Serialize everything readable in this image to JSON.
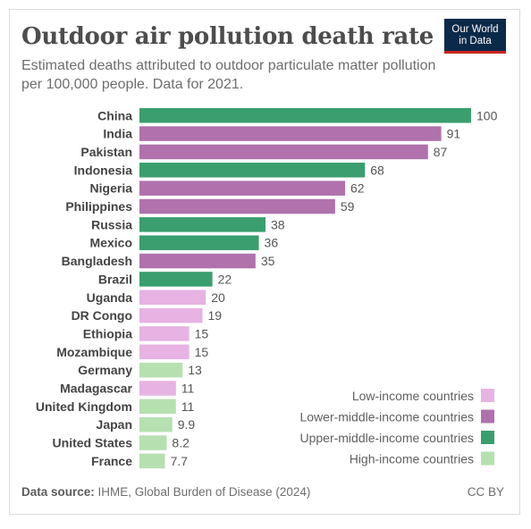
{
  "header": {
    "title": "Outdoor air pollution death rate",
    "subtitle": "Estimated deaths attributed to outdoor particulate matter pollution per 100,000 people. Data for 2021.",
    "logo_line1": "Our World",
    "logo_line2": "in Data"
  },
  "colors": {
    "low": "#e6b3e3",
    "lower_middle": "#b071ad",
    "upper_middle": "#3a9e6e",
    "high": "#b6e0b0"
  },
  "chart_data": {
    "type": "bar",
    "orientation": "horizontal",
    "categories": [
      "China",
      "India",
      "Pakistan",
      "Indonesia",
      "Nigeria",
      "Philippines",
      "Russia",
      "Mexico",
      "Bangladesh",
      "Brazil",
      "Uganda",
      "DR Congo",
      "Ethiopia",
      "Mozambique",
      "Germany",
      "Madagascar",
      "United Kingdom",
      "Japan",
      "United States",
      "France"
    ],
    "values": [
      100,
      91,
      87,
      68,
      62,
      59,
      38,
      36,
      35,
      22,
      20,
      19,
      15,
      15,
      13,
      11,
      11,
      9.9,
      8.2,
      7.7
    ],
    "value_labels": [
      "100",
      "91",
      "87",
      "68",
      "62",
      "59",
      "38",
      "36",
      "35",
      "22",
      "20",
      "19",
      "15",
      "15",
      "13",
      "11",
      "11",
      "9.9",
      "8.2",
      "7.7"
    ],
    "groups": [
      "upper_middle",
      "lower_middle",
      "lower_middle",
      "upper_middle",
      "lower_middle",
      "lower_middle",
      "upper_middle",
      "upper_middle",
      "lower_middle",
      "upper_middle",
      "low",
      "low",
      "low",
      "low",
      "high",
      "low",
      "high",
      "high",
      "high",
      "high"
    ],
    "xlim": [
      0,
      100
    ],
    "grid": false,
    "legend_position": "bottom-right",
    "legend": [
      {
        "key": "low",
        "label": "Low-income countries"
      },
      {
        "key": "lower_middle",
        "label": "Lower-middle-income countries"
      },
      {
        "key": "upper_middle",
        "label": "Upper-middle-income countries"
      },
      {
        "key": "high",
        "label": "High-income countries"
      }
    ]
  },
  "footer": {
    "source_label": "Data source:",
    "source_text": "IHME, Global Burden of Disease (2024)",
    "license": "CC BY"
  }
}
